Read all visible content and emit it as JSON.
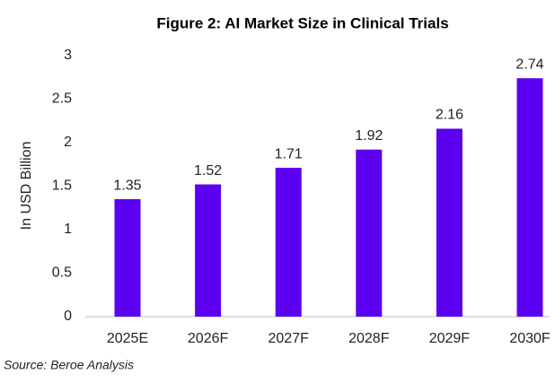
{
  "chart_data": {
    "type": "bar",
    "title": "Figure 2: AI Market Size in Clinical Trials",
    "y_label": "In USD Billion",
    "source": "Source: Beroe Analysis",
    "categories": [
      "2025E",
      "2026F",
      "2027F",
      "2028F",
      "2029F",
      "2030F"
    ],
    "values": [
      1.35,
      1.52,
      1.71,
      1.92,
      2.16,
      2.74
    ],
    "color": "#5b00f0",
    "ylim": [
      0,
      3
    ],
    "yticks": [
      0,
      0.5,
      1,
      1.5,
      2,
      2.5,
      3
    ],
    "grid": false
  }
}
